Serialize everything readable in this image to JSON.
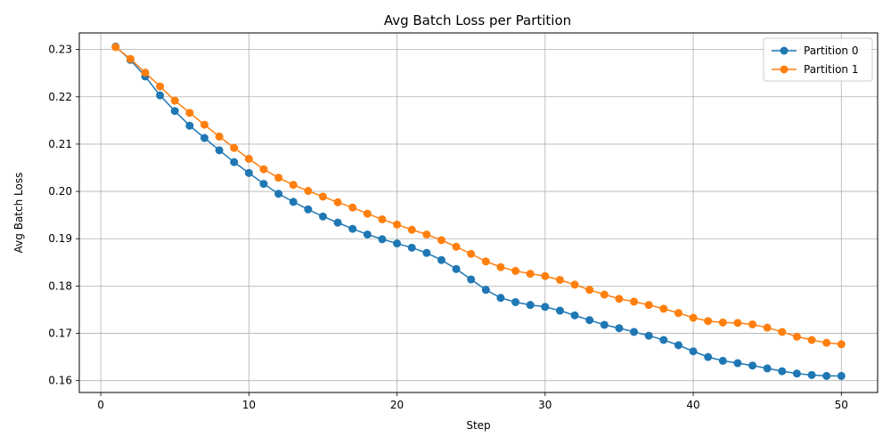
{
  "chart_data": {
    "type": "line",
    "title": "Avg Batch Loss per Partition",
    "xlabel": "Step",
    "ylabel": "Avg Batch Loss",
    "xlim": [
      -1.45,
      52.45
    ],
    "ylim": [
      0.1575,
      0.2335
    ],
    "xticks": [
      0,
      10,
      20,
      30,
      40,
      50
    ],
    "yticks": [
      0.16,
      0.17,
      0.18,
      0.19,
      0.2,
      0.21,
      0.22,
      0.23
    ],
    "ytick_labels": [
      "0.16",
      "0.17",
      "0.18",
      "0.19",
      "0.20",
      "0.21",
      "0.22",
      "0.23"
    ],
    "grid": true,
    "legend": "top-right",
    "x": [
      1,
      2,
      3,
      4,
      5,
      6,
      7,
      8,
      9,
      10,
      11,
      12,
      13,
      14,
      15,
      16,
      17,
      18,
      19,
      20,
      21,
      22,
      23,
      24,
      25,
      26,
      27,
      28,
      29,
      30,
      31,
      32,
      33,
      34,
      35,
      36,
      37,
      38,
      39,
      40,
      41,
      42,
      43,
      44,
      45,
      46,
      47,
      48,
      49,
      50
    ],
    "series": [
      {
        "name": "Partition 0",
        "color": "#1f77b4",
        "values": [
          0.2306,
          0.2278,
          0.2243,
          0.2203,
          0.217,
          0.2139,
          0.2113,
          0.2087,
          0.2062,
          0.2039,
          0.2016,
          0.1995,
          0.1978,
          0.1962,
          0.1947,
          0.1934,
          0.1921,
          0.1909,
          0.1899,
          0.189,
          0.1881,
          0.187,
          0.1855,
          0.1836,
          0.1814,
          0.1792,
          0.1775,
          0.1766,
          0.176,
          0.1756,
          0.1748,
          0.1738,
          0.1728,
          0.1718,
          0.1711,
          0.1703,
          0.1695,
          0.1686,
          0.1675,
          0.1662,
          0.165,
          0.1642,
          0.1637,
          0.1632,
          0.1626,
          0.162,
          0.1615,
          0.1612,
          0.161,
          0.161
        ]
      },
      {
        "name": "Partition 1",
        "color": "#ff7f0e",
        "values": [
          0.2305,
          0.228,
          0.2251,
          0.2222,
          0.2192,
          0.2166,
          0.2141,
          0.2116,
          0.2092,
          0.2069,
          0.2047,
          0.2029,
          0.2014,
          0.2001,
          0.1989,
          0.1977,
          0.1966,
          0.1953,
          0.1941,
          0.193,
          0.1919,
          0.1909,
          0.1897,
          0.1883,
          0.1868,
          0.1852,
          0.184,
          0.1832,
          0.1826,
          0.1821,
          0.1813,
          0.1803,
          0.1792,
          0.1782,
          0.1773,
          0.1767,
          0.176,
          0.1752,
          0.1743,
          0.1733,
          0.1726,
          0.1723,
          0.1722,
          0.1719,
          0.1712,
          0.1703,
          0.1693,
          0.1686,
          0.168,
          0.1677
        ]
      }
    ]
  }
}
